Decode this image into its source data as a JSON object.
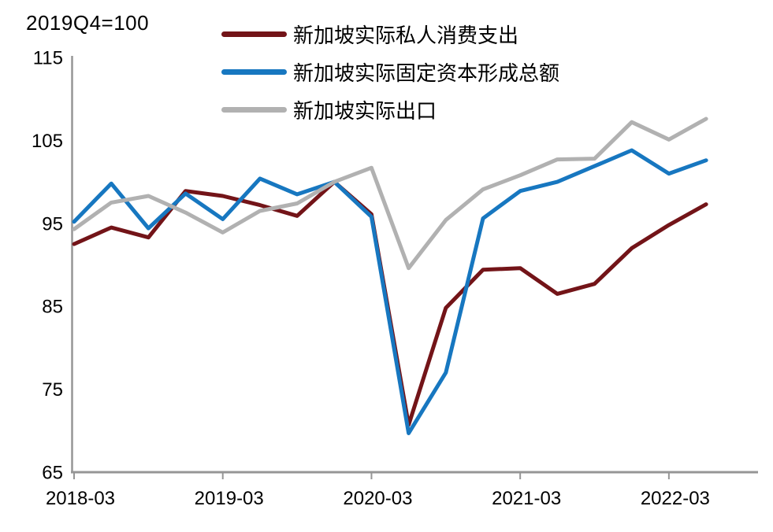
{
  "chart_data": {
    "type": "line",
    "title": "2019Q4=100",
    "categories": [
      "2018-03",
      "2018-06",
      "2018-09",
      "2018-12",
      "2019-03",
      "2019-06",
      "2019-09",
      "2019-12",
      "2020-03",
      "2020-06",
      "2020-09",
      "2020-12",
      "2021-03",
      "2021-06",
      "2021-09",
      "2021-12",
      "2022-03",
      "2022-06"
    ],
    "x_tick_labels": [
      "2018-03",
      "2019-03",
      "2020-03",
      "2021-03",
      "2022-03"
    ],
    "x_tick_every": 4,
    "y_ticks": [
      115,
      105,
      95,
      85,
      75,
      65
    ],
    "ylim": [
      65,
      115
    ],
    "grid": false,
    "legend_position": "top",
    "axis_color": "#969696",
    "series": [
      {
        "name": "新加坡实际私人消费支出",
        "color": "#731418",
        "values": [
          92.5,
          94.5,
          93.3,
          98.9,
          98.3,
          97.2,
          95.9,
          100.0,
          96.1,
          70.7,
          84.8,
          89.4,
          89.6,
          86.5,
          87.7,
          92.0,
          94.8,
          97.3
        ]
      },
      {
        "name": "新加坡实际固定资本形成总额",
        "color": "#1777c0",
        "values": [
          95.2,
          99.8,
          94.4,
          98.6,
          95.5,
          100.4,
          98.5,
          100.0,
          95.8,
          69.7,
          77.0,
          95.6,
          98.9,
          100.0,
          101.9,
          103.8,
          101.0,
          102.6
        ]
      },
      {
        "name": "新加坡实际出口",
        "color": "#b1b1b1",
        "values": [
          94.3,
          97.5,
          98.3,
          96.3,
          93.9,
          96.5,
          97.4,
          100.0,
          101.7,
          89.6,
          95.4,
          99.1,
          100.8,
          102.7,
          102.8,
          107.2,
          105.1,
          107.6
        ]
      }
    ]
  }
}
